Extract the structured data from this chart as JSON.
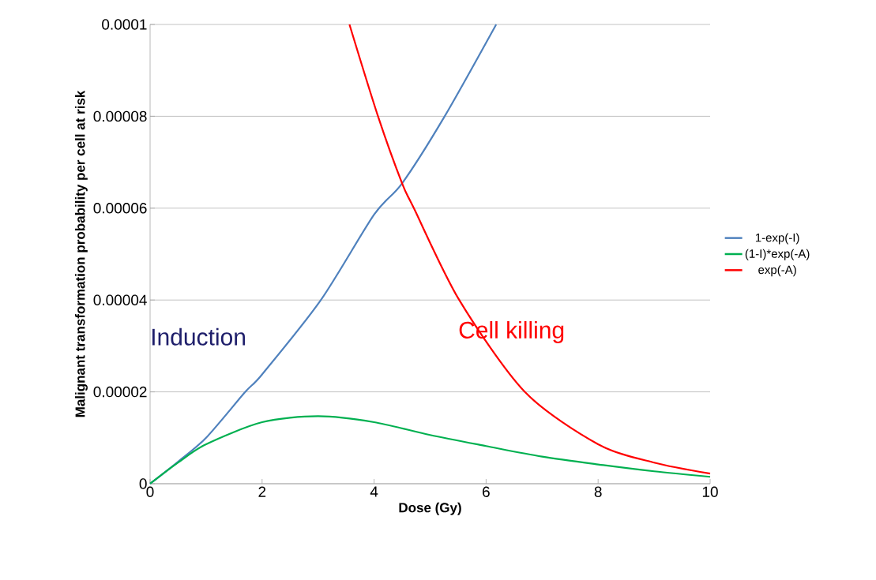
{
  "chart_data": {
    "type": "line",
    "xlabel": "Dose (Gy)",
    "ylabel": "Malignant transformation probability per cell at risk",
    "xlim": [
      0,
      10
    ],
    "ylim": [
      0,
      0.0001
    ],
    "xticks": [
      0,
      2,
      4,
      6,
      8,
      10
    ],
    "yticks": [
      {
        "value": 0,
        "label": "0"
      },
      {
        "value": 2e-05,
        "label": "0.00002"
      },
      {
        "value": 4e-05,
        "label": "0.00004"
      },
      {
        "value": 6e-05,
        "label": "0.00006"
      },
      {
        "value": 8e-05,
        "label": "0.00008"
      },
      {
        "value": 0.0001,
        "label": "0.0001"
      }
    ],
    "grid": "y",
    "legend": "right",
    "marker": "none",
    "series": [
      {
        "name": "1-exp(-I)",
        "color": "#4f81bd",
        "x": [
          0,
          0.5,
          1,
          1.7,
          2,
          3.05,
          4,
          4.5,
          5.26,
          6.18
        ],
        "values": [
          0,
          4.8e-06,
          1e-05,
          2e-05,
          2.38e-05,
          4e-05,
          5.86e-05,
          6.54e-05,
          8e-05,
          0.0001
        ]
      },
      {
        "name": "(1-I)*exp(-A)",
        "color": "#00b050",
        "x": [
          0,
          0.5,
          1,
          2,
          3,
          4,
          5,
          6,
          7,
          8,
          9,
          10
        ],
        "values": [
          0,
          4.6e-06,
          8.6e-06,
          1.34e-05,
          1.47e-05,
          1.34e-05,
          1.06e-05,
          8.2e-06,
          5.9e-06,
          4.2e-06,
          2.7e-06,
          1.5e-06
        ]
      },
      {
        "name": "exp(-A)",
        "color": "#ff0000",
        "x": [
          3.56,
          4.07,
          4.5,
          4.71,
          5.52,
          6.69,
          8,
          9,
          10
        ],
        "values": [
          0.0001,
          8e-05,
          6.54e-05,
          6e-05,
          4e-05,
          2e-05,
          8.6e-06,
          4.6e-06,
          2.2e-06
        ]
      }
    ],
    "annotations": [
      "Induction",
      "Cell killing"
    ]
  }
}
